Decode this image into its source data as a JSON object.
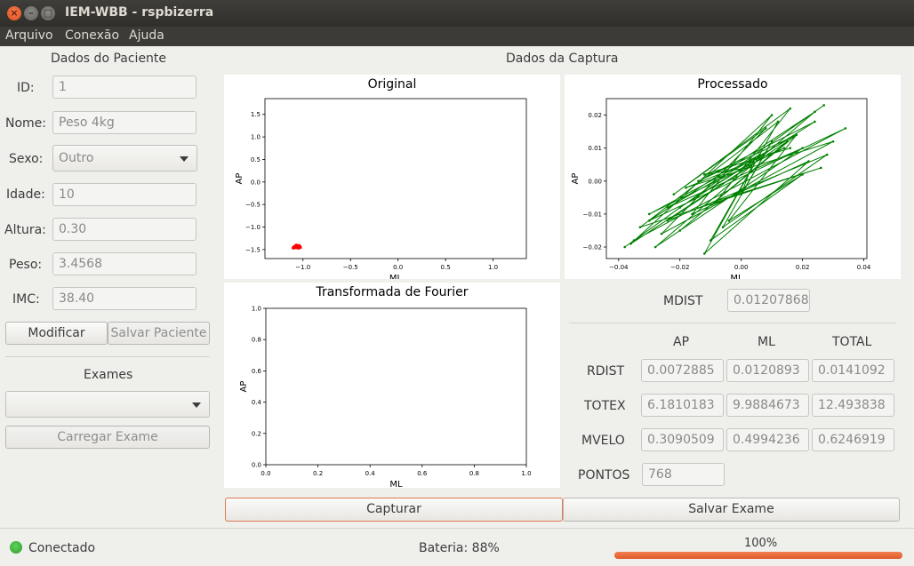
{
  "window": {
    "title": "IEM-WBB - rspbizerra"
  },
  "menu": {
    "items": [
      "Arquivo",
      "Conexão",
      "Ajuda"
    ]
  },
  "patient": {
    "section_title": "Dados do Paciente",
    "id_label": "ID:",
    "id_value": "1",
    "name_label": "Nome:",
    "name_value": "Peso 4kg",
    "sex_label": "Sexo:",
    "sex_value": "Outro",
    "age_label": "Idade:",
    "age_value": "10",
    "height_label": "Altura:",
    "height_value": "0.30",
    "weight_label": "Peso:",
    "weight_value": "3.4568",
    "bmi_label": "IMC:",
    "bmi_value": "38.40",
    "modify_button": "Modificar",
    "save_button": "Salvar Paciente"
  },
  "exams": {
    "section_title": "Exames",
    "selected": "",
    "load_button": "Carregar Exame"
  },
  "capture": {
    "section_title": "Dados da Captura",
    "capture_button": "Capturar",
    "save_exam_button": "Salvar Exame"
  },
  "metrics": {
    "mdist_label": "MDIST",
    "mdist_value": "0.01207868",
    "col_ap": "AP",
    "col_ml": "ML",
    "col_total": "TOTAL",
    "rows": [
      {
        "label": "RDIST",
        "ap": "0.0072885",
        "ml": "0.0120893",
        "total": "0.0141092"
      },
      {
        "label": "TOTEX",
        "ap": "6.1810183",
        "ml": "9.9884673",
        "total": "12.493838"
      },
      {
        "label": "MVELO",
        "ap": "0.3090509",
        "ml": "0.4994236",
        "total": "0.6246919"
      }
    ],
    "points_label": "PONTOS",
    "points_value": "768"
  },
  "status": {
    "connection": "Conectado",
    "battery": "Bateria: 88%",
    "progress_text": "100%",
    "progress_value": 1.0
  },
  "colors": {
    "accent": "#e05a28",
    "original_series": "#ff0000",
    "processed_series": "#008000",
    "led": "#3cb138"
  },
  "chart_data": [
    {
      "type": "scatter",
      "title": "Original",
      "xlabel": "ML",
      "ylabel": "AP",
      "xlim": [
        -1.4,
        1.35
      ],
      "ylim": [
        -1.7,
        1.85
      ],
      "xticks": [
        "−1.0",
        "−0.5",
        "0.0",
        "0.5",
        "1.0"
      ],
      "yticks": [
        "1.5",
        "1.0",
        "0.5",
        "0.0",
        "−0.5",
        "−1.0",
        "−1.5"
      ],
      "xtick_values": [
        -1.0,
        -0.5,
        0.0,
        0.5,
        1.0
      ],
      "ytick_values": [
        1.5,
        1.0,
        0.5,
        0.0,
        -0.5,
        -1.0,
        -1.5
      ],
      "series": [
        {
          "x": [
            -1.1,
            -1.09,
            -1.08,
            -1.07,
            -1.06,
            -1.05,
            -1.04,
            -1.03,
            -1.07,
            -1.05,
            -1.09,
            -1.04
          ],
          "y": [
            -1.46,
            -1.44,
            -1.43,
            -1.45,
            -1.42,
            -1.44,
            -1.43,
            -1.45,
            -1.41,
            -1.46,
            -1.45,
            -1.42
          ]
        }
      ]
    },
    {
      "type": "line",
      "title": "Processado",
      "xlabel": "ML",
      "ylabel": "AP",
      "xlim": [
        -0.044,
        0.041
      ],
      "ylim": [
        -0.0235,
        0.025
      ],
      "xticks": [
        "−0.04",
        "−0.02",
        "0.00",
        "0.02",
        "0.04"
      ],
      "yticks": [
        "0.02",
        "0.01",
        "0.00",
        "−0.01",
        "−0.02"
      ],
      "xtick_values": [
        -0.04,
        -0.02,
        0.0,
        0.02,
        0.04
      ],
      "ytick_values": [
        0.02,
        0.01,
        0.0,
        -0.01,
        -0.02
      ],
      "series": [
        {
          "x": [
            -0.038,
            0.027,
            -0.035,
            0.034,
            -0.03,
            0.024,
            -0.028,
            0.02,
            -0.024,
            0.018,
            -0.02,
            0.015,
            -0.036,
            0.01,
            -0.016,
            0.022,
            -0.012,
            0.012,
            -0.033,
            0.026,
            -0.008,
            0.016,
            -0.022,
            0.008,
            -0.026,
            0.03,
            -0.018,
            0.014,
            -0.03,
            0.006,
            -0.01,
            0.02,
            -0.004,
            0.018,
            -0.014,
            0.024,
            -0.02,
            0.004,
            0.0,
            0.01,
            -0.006,
            0.028,
            -0.024,
            0.002,
            -0.012,
            0.016
          ],
          "y": [
            -0.02,
            0.023,
            -0.018,
            0.016,
            -0.012,
            0.021,
            -0.02,
            0.01,
            -0.008,
            0.014,
            -0.015,
            0.012,
            -0.019,
            0.02,
            -0.01,
            0.006,
            -0.022,
            0.018,
            -0.014,
            0.004,
            -0.006,
            0.022,
            -0.004,
            0.016,
            -0.016,
            0.012,
            -0.002,
            0.01,
            -0.01,
            0.008,
            -0.018,
            0.002,
            -0.012,
            0.014,
            0.0,
            0.018,
            -0.008,
            0.006,
            -0.004,
            0.012,
            -0.014,
            0.008,
            -0.012,
            0.004,
            0.002,
            0.01
          ]
        }
      ]
    },
    {
      "type": "line",
      "title": "Transformada de Fourier",
      "xlabel": "ML",
      "ylabel": "AP",
      "xlim": [
        0.0,
        1.0
      ],
      "ylim": [
        0.0,
        1.0
      ],
      "xticks": [
        "0.0",
        "0.2",
        "0.4",
        "0.6",
        "0.8",
        "1.0"
      ],
      "yticks": [
        "1.0",
        "0.8",
        "0.6",
        "0.4",
        "0.2",
        "0.0"
      ],
      "xtick_values": [
        0.0,
        0.2,
        0.4,
        0.6,
        0.8,
        1.0
      ],
      "ytick_values": [
        1.0,
        0.8,
        0.6,
        0.4,
        0.2,
        0.0
      ],
      "series": []
    }
  ]
}
